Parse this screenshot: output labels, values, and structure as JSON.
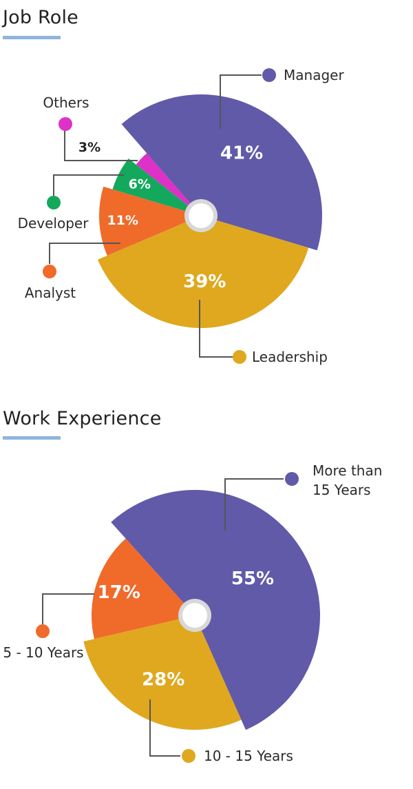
{
  "chart_data": [
    {
      "type": "pie",
      "title": "Job Role",
      "categories": [
        "Manager",
        "Leadership",
        "Analyst",
        "Developer",
        "Others"
      ],
      "values": [
        41,
        39,
        11,
        6,
        3
      ],
      "value_labels": [
        "41%",
        "39%",
        "11%",
        "6%",
        "3%"
      ],
      "colors": [
        "#615aa8",
        "#dfa81e",
        "#f06a2a",
        "#14a85c",
        "#dd31c7"
      ],
      "legend_lines": [
        [
          "Manager"
        ],
        [
          "Leadership"
        ],
        [
          "Analyst"
        ],
        [
          "Developer"
        ],
        [
          "Others"
        ]
      ]
    },
    {
      "type": "pie",
      "title": "Work Experience",
      "categories": [
        "More than 15 Years",
        "10 - 15 Years",
        "5 - 10 Years"
      ],
      "values": [
        55,
        28,
        17
      ],
      "value_labels": [
        "55%",
        "28%",
        "17%"
      ],
      "colors": [
        "#615aa8",
        "#dfa81e",
        "#f06a2a"
      ],
      "legend_lines": [
        [
          "More than",
          "15 Years"
        ],
        [
          "10 - 15 Years"
        ],
        [
          "5 - 10 Years"
        ]
      ]
    }
  ]
}
